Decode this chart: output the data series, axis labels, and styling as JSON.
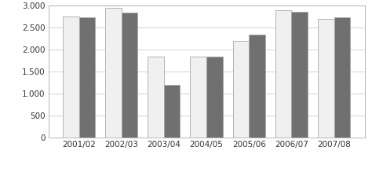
{
  "categories": [
    "2001/02",
    "2002/03",
    "2003/04",
    "2004/05",
    "2005/06",
    "2006/07",
    "2007/08"
  ],
  "mato_grosso_sul": [
    2750,
    2950,
    1850,
    1850,
    2200,
    2900,
    2700
  ],
  "dourados_ms": [
    2730,
    2840,
    1200,
    1840,
    2340,
    2870,
    2740
  ],
  "color_mgs": "#f0f0f0",
  "color_dms": "#707070",
  "ylim": [
    0,
    3000
  ],
  "yticks": [
    0,
    500,
    1000,
    1500,
    2000,
    2500,
    3000
  ],
  "ytick_labels": [
    "0",
    "500",
    "1.000",
    "1.500",
    "2.000",
    "2.500",
    "3.000"
  ],
  "bar_width": 0.38,
  "background_color": "#ffffff",
  "plot_bg_color": "#ffffff",
  "edge_color": "#aaaaaa",
  "grid_color": "#cccccc",
  "font_size": 7.5,
  "legend_font_size": 7.5,
  "tick_label_color": "#333333",
  "spine_color": "#aaaaaa"
}
